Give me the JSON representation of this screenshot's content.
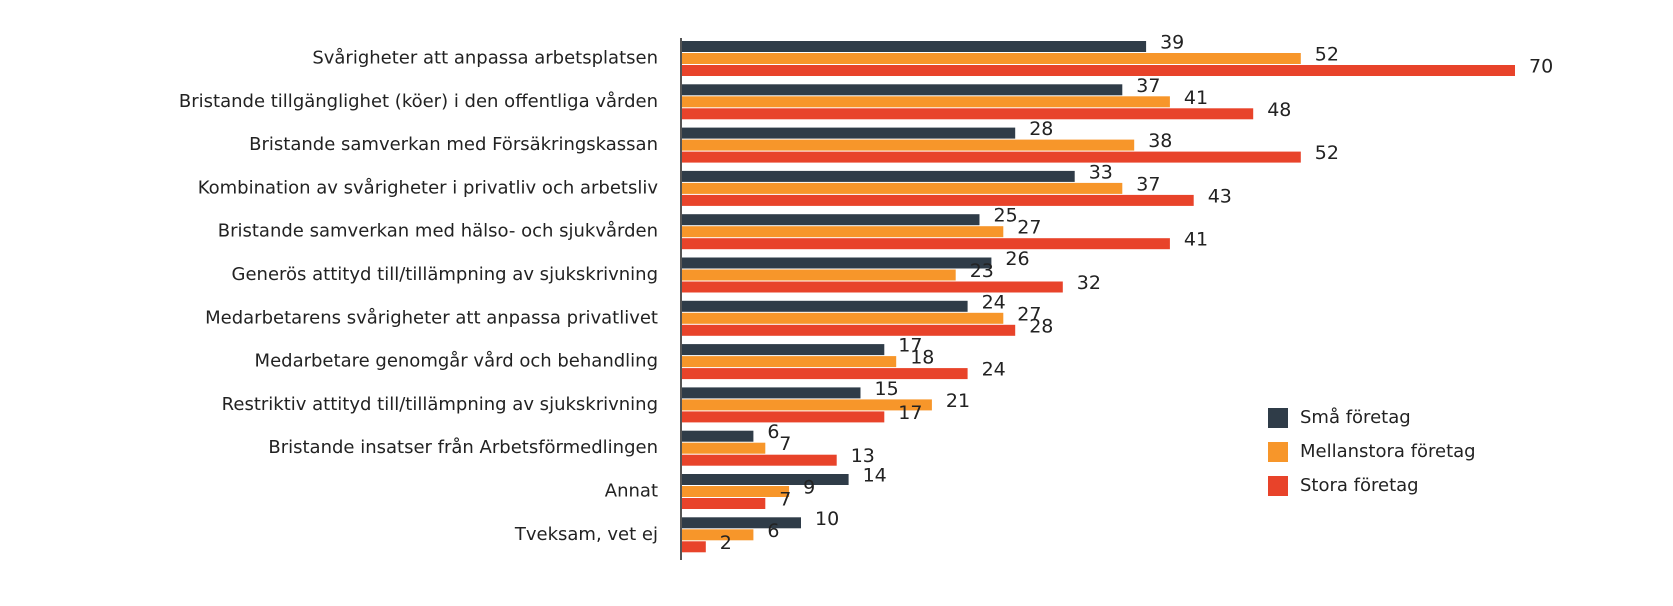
{
  "chart_data": {
    "type": "bar",
    "orientation": "horizontal",
    "categories": [
      "Svårigheter att anpassa arbetsplatsen",
      "Bristande tillgänglighet (köer) i den offentliga vården",
      "Bristande samverkan med Försäkringskassan",
      "Kombination av svårigheter i privatliv och arbetsliv",
      "Bristande samverkan med hälso- och sjukvården",
      "Generös attityd till/tillämpning av sjukskrivning",
      "Medarbetarens svårigheter att anpassa privatlivet",
      "Medarbetare genomgår vård och behandling",
      "Restriktiv attityd till/tillämpning av sjukskrivning",
      "Bristande insatser från Arbetsförmedlingen",
      "Annat",
      "Tveksam, vet ej"
    ],
    "series": [
      {
        "name": "Små företag",
        "color": "#2f3c48",
        "values": [
          39,
          37,
          28,
          33,
          25,
          26,
          24,
          17,
          15,
          6,
          14,
          10
        ]
      },
      {
        "name": "Mellanstora företag",
        "color": "#f7962a",
        "values": [
          52,
          41,
          38,
          37,
          27,
          23,
          27,
          18,
          21,
          7,
          9,
          6
        ]
      },
      {
        "name": "Stora företag",
        "color": "#e8432a",
        "values": [
          70,
          48,
          52,
          43,
          41,
          32,
          28,
          24,
          17,
          13,
          7,
          2
        ]
      }
    ],
    "xlim": [
      0,
      70
    ],
    "legend": "lower right"
  }
}
